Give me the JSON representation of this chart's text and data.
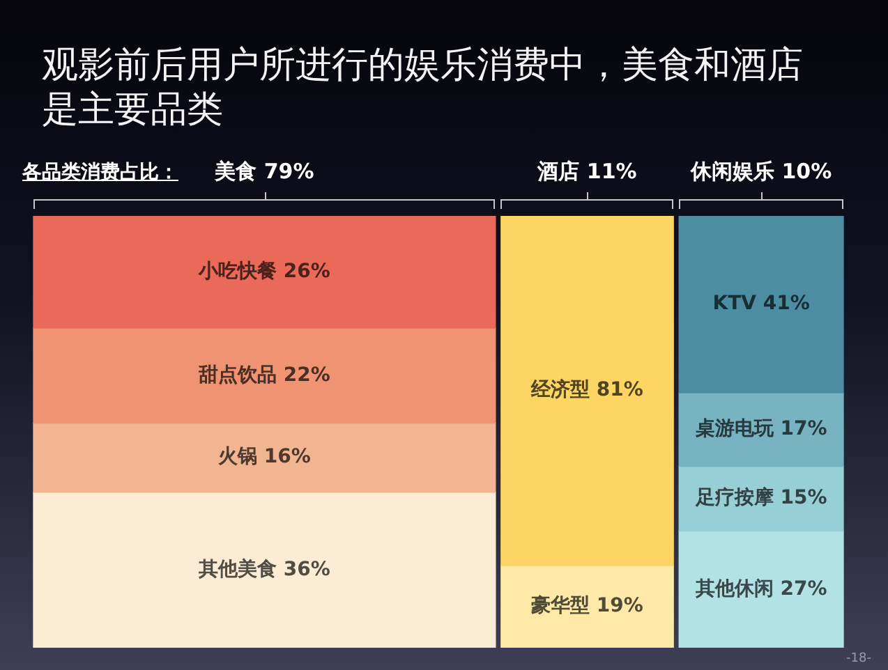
{
  "chart_data": {
    "type": "other",
    "title": "观影前后用户所进行的娱乐消费中，美食和酒店是主要品类",
    "xlabel": "各品类消费占比：",
    "categories": [
      "美食",
      "酒店",
      "休闲娱乐"
    ],
    "values": [
      79,
      11,
      10
    ],
    "value_labels": [
      "79%",
      "11%",
      "10%"
    ],
    "series": [
      {
        "name": "小吃快餐",
        "color": "#e96a58",
        "values": [
          26,
          null,
          null
        ],
        "value_labels": [
          "26%",
          null,
          null
        ]
      },
      {
        "name": "甜点饮品",
        "color": "#ef9372",
        "values": [
          22,
          null,
          null
        ],
        "value_labels": [
          "22%",
          null,
          null
        ]
      },
      {
        "name": "火锅",
        "color": "#f2b592",
        "values": [
          16,
          null,
          null
        ],
        "value_labels": [
          "16%",
          null,
          null
        ]
      },
      {
        "name": "其他美食",
        "color": "#fdecd5",
        "values": [
          36,
          null,
          null
        ],
        "value_labels": [
          "36%",
          null,
          null
        ]
      },
      {
        "name": "经济型",
        "color": "#fdd565",
        "values": [
          null,
          81,
          null
        ],
        "value_labels": [
          null,
          "81%",
          null
        ]
      },
      {
        "name": "豪华型",
        "color": "#fee9a9",
        "values": [
          null,
          19,
          null
        ],
        "value_labels": [
          null,
          "19%",
          null
        ]
      },
      {
        "name": "KTV",
        "color": "#4d8da2",
        "values": [
          null,
          null,
          41
        ],
        "value_labels": [
          null,
          null,
          "41%"
        ]
      },
      {
        "name": "桌游电玩",
        "color": "#77b3c1",
        "values": [
          null,
          null,
          17
        ],
        "value_labels": [
          null,
          null,
          "17%"
        ]
      },
      {
        "name": "足疗按摩",
        "color": "#98ced5",
        "values": [
          null,
          null,
          15
        ],
        "value_labels": [
          null,
          null,
          "15%"
        ]
      },
      {
        "name": "其他休闲",
        "color": "#b2e2e6",
        "values": [
          null,
          null,
          27
        ],
        "value_labels": [
          null,
          null,
          "27%"
        ]
      }
    ],
    "annotations": [
      "-18-"
    ]
  }
}
